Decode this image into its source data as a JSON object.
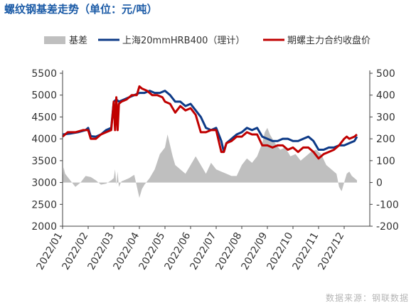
{
  "title": "螺纹钢基差走势（单位：元/吨）",
  "source": "数据来源：钢联数据",
  "colors": {
    "basis": "#bfbfbf",
    "spot": "#0d3a87",
    "futures": "#c00000",
    "title": "#1a5aa6"
  },
  "chart_data": {
    "type": "line",
    "categories": [
      "2022/01",
      "2022/02",
      "2022/03",
      "2022/04",
      "2022/05",
      "2022/06",
      "2022/07",
      "2022/08",
      "2022/09",
      "2022/10",
      "2022/11",
      "2022/12"
    ],
    "y_left": {
      "min": 2000,
      "max": 5500,
      "ticks": [
        2000,
        2500,
        3000,
        3500,
        4000,
        4500,
        5000,
        5500
      ]
    },
    "y_right": {
      "min": -200,
      "max": 500,
      "ticks": [
        -200,
        -100,
        0,
        100,
        200,
        300,
        400,
        500
      ]
    },
    "grid": false,
    "legend_position": "top",
    "series": [
      {
        "name": "基差",
        "type": "area",
        "axis": "right",
        "color": "#bfbfbf",
        "points": [
          [
            0.0,
            10
          ],
          [
            0.04,
            70
          ],
          [
            0.1,
            40
          ],
          [
            0.3,
            10
          ],
          [
            0.5,
            -20
          ],
          [
            0.7,
            0
          ],
          [
            0.9,
            30
          ],
          [
            1.1,
            25
          ],
          [
            1.3,
            10
          ],
          [
            1.5,
            -10
          ],
          [
            1.7,
            -5
          ],
          [
            1.9,
            10
          ],
          [
            2.0,
            20
          ],
          [
            2.05,
            60
          ],
          [
            2.1,
            -10
          ],
          [
            2.15,
            50
          ],
          [
            2.2,
            -20
          ],
          [
            2.3,
            5
          ],
          [
            2.5,
            15
          ],
          [
            2.6,
            20
          ],
          [
            2.8,
            35
          ],
          [
            3.0,
            -70
          ],
          [
            3.1,
            -30
          ],
          [
            3.2,
            -10
          ],
          [
            3.4,
            20
          ],
          [
            3.6,
            60
          ],
          [
            3.8,
            130
          ],
          [
            4.0,
            160
          ],
          [
            4.1,
            220
          ],
          [
            4.2,
            170
          ],
          [
            4.3,
            120
          ],
          [
            4.4,
            80
          ],
          [
            4.6,
            60
          ],
          [
            4.8,
            40
          ],
          [
            5.0,
            80
          ],
          [
            5.2,
            120
          ],
          [
            5.4,
            80
          ],
          [
            5.6,
            40
          ],
          [
            5.8,
            90
          ],
          [
            6.0,
            60
          ],
          [
            6.2,
            50
          ],
          [
            6.4,
            40
          ],
          [
            6.6,
            30
          ],
          [
            6.8,
            30
          ],
          [
            7.0,
            80
          ],
          [
            7.2,
            110
          ],
          [
            7.4,
            90
          ],
          [
            7.6,
            120
          ],
          [
            7.8,
            180
          ],
          [
            7.9,
            230
          ],
          [
            8.0,
            250
          ],
          [
            8.1,
            220
          ],
          [
            8.3,
            180
          ],
          [
            8.5,
            150
          ],
          [
            8.7,
            160
          ],
          [
            8.9,
            120
          ],
          [
            9.1,
            130
          ],
          [
            9.3,
            100
          ],
          [
            9.5,
            120
          ],
          [
            9.7,
            140
          ],
          [
            9.9,
            150
          ],
          [
            10.1,
            130
          ],
          [
            10.3,
            80
          ],
          [
            10.5,
            60
          ],
          [
            10.7,
            40
          ],
          [
            10.8,
            -20
          ],
          [
            10.9,
            -40
          ],
          [
            11.0,
            0
          ],
          [
            11.1,
            40
          ],
          [
            11.2,
            50
          ],
          [
            11.3,
            30
          ],
          [
            11.4,
            20
          ],
          [
            11.5,
            10
          ]
        ]
      },
      {
        "name": "上海20mmHRB400（理计）",
        "type": "line",
        "axis": "left",
        "color": "#0d3a87",
        "points": [
          [
            0.0,
            4100
          ],
          [
            0.3,
            4120
          ],
          [
            0.6,
            4150
          ],
          [
            0.9,
            4200
          ],
          [
            1.0,
            4250
          ],
          [
            1.1,
            4060
          ],
          [
            1.3,
            4050
          ],
          [
            1.5,
            4100
          ],
          [
            1.7,
            4200
          ],
          [
            1.9,
            4250
          ],
          [
            2.0,
            4850
          ],
          [
            2.1,
            4900
          ],
          [
            2.2,
            4850
          ],
          [
            2.4,
            4900
          ],
          [
            2.6,
            4950
          ],
          [
            2.8,
            5000
          ],
          [
            3.0,
            5050
          ],
          [
            3.2,
            5050
          ],
          [
            3.4,
            5100
          ],
          [
            3.6,
            5050
          ],
          [
            3.8,
            5050
          ],
          [
            4.0,
            5100
          ],
          [
            4.2,
            5000
          ],
          [
            4.4,
            4850
          ],
          [
            4.6,
            4850
          ],
          [
            4.8,
            4750
          ],
          [
            5.0,
            4800
          ],
          [
            5.2,
            4650
          ],
          [
            5.4,
            4500
          ],
          [
            5.6,
            4250
          ],
          [
            5.8,
            4200
          ],
          [
            6.0,
            4250
          ],
          [
            6.2,
            3950
          ],
          [
            6.3,
            3700
          ],
          [
            6.4,
            3900
          ],
          [
            6.6,
            4000
          ],
          [
            6.8,
            4100
          ],
          [
            7.0,
            4150
          ],
          [
            7.2,
            4250
          ],
          [
            7.4,
            4200
          ],
          [
            7.6,
            4250
          ],
          [
            7.8,
            4050
          ],
          [
            8.0,
            4000
          ],
          [
            8.2,
            3950
          ],
          [
            8.4,
            3950
          ],
          [
            8.6,
            4000
          ],
          [
            8.8,
            4000
          ],
          [
            9.0,
            3950
          ],
          [
            9.2,
            3950
          ],
          [
            9.4,
            4000
          ],
          [
            9.6,
            4050
          ],
          [
            9.8,
            3950
          ],
          [
            10.0,
            3750
          ],
          [
            10.2,
            3750
          ],
          [
            10.4,
            3800
          ],
          [
            10.6,
            3800
          ],
          [
            10.8,
            3850
          ],
          [
            11.0,
            3850
          ],
          [
            11.2,
            3900
          ],
          [
            11.4,
            3950
          ],
          [
            11.5,
            4050
          ]
        ]
      },
      {
        "name": "期螺主力合约收盘价",
        "type": "line",
        "axis": "left",
        "color": "#c00000",
        "points": [
          [
            0.0,
            4050
          ],
          [
            0.2,
            4150
          ],
          [
            0.5,
            4150
          ],
          [
            0.8,
            4200
          ],
          [
            1.0,
            4200
          ],
          [
            1.1,
            4000
          ],
          [
            1.3,
            4000
          ],
          [
            1.5,
            4100
          ],
          [
            1.7,
            4150
          ],
          [
            1.9,
            4200
          ],
          [
            2.0,
            4850
          ],
          [
            2.05,
            4200
          ],
          [
            2.1,
            4950
          ],
          [
            2.15,
            4200
          ],
          [
            2.2,
            4800
          ],
          [
            2.3,
            4850
          ],
          [
            2.5,
            4900
          ],
          [
            2.7,
            5000
          ],
          [
            2.9,
            5000
          ],
          [
            3.0,
            5200
          ],
          [
            3.1,
            5150
          ],
          [
            3.3,
            5100
          ],
          [
            3.5,
            5000
          ],
          [
            3.7,
            5000
          ],
          [
            3.9,
            4950
          ],
          [
            4.0,
            4850
          ],
          [
            4.2,
            4800
          ],
          [
            4.4,
            4600
          ],
          [
            4.6,
            4750
          ],
          [
            4.8,
            4650
          ],
          [
            5.0,
            4700
          ],
          [
            5.2,
            4550
          ],
          [
            5.4,
            4150
          ],
          [
            5.6,
            4150
          ],
          [
            5.8,
            4200
          ],
          [
            6.0,
            4200
          ],
          [
            6.2,
            3700
          ],
          [
            6.3,
            3700
          ],
          [
            6.4,
            3900
          ],
          [
            6.6,
            3950
          ],
          [
            6.8,
            4050
          ],
          [
            7.0,
            4050
          ],
          [
            7.2,
            4150
          ],
          [
            7.4,
            4100
          ],
          [
            7.6,
            4100
          ],
          [
            7.8,
            3850
          ],
          [
            8.0,
            3850
          ],
          [
            8.2,
            3800
          ],
          [
            8.4,
            3850
          ],
          [
            8.6,
            3850
          ],
          [
            8.8,
            3750
          ],
          [
            9.0,
            3800
          ],
          [
            9.2,
            3700
          ],
          [
            9.4,
            3800
          ],
          [
            9.6,
            3800
          ],
          [
            9.8,
            3700
          ],
          [
            10.0,
            3550
          ],
          [
            10.2,
            3650
          ],
          [
            10.4,
            3700
          ],
          [
            10.6,
            3750
          ],
          [
            10.8,
            3850
          ],
          [
            11.0,
            4000
          ],
          [
            11.1,
            4050
          ],
          [
            11.2,
            4000
          ],
          [
            11.4,
            4050
          ],
          [
            11.5,
            4100
          ]
        ]
      }
    ]
  }
}
